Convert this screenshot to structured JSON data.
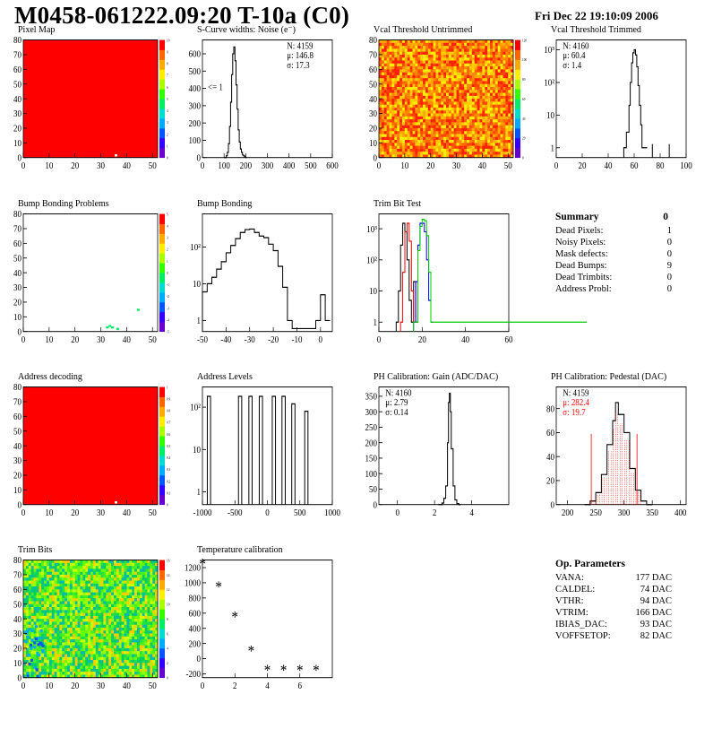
{
  "header": {
    "title": "M0458-061222.09:20 T-10a (C0)",
    "date": "Fri Dec 22 19:10:09 2006"
  },
  "colors": {
    "red_fill": "#ff0000",
    "green_line": "#00cc00",
    "blue_line": "#0000ff",
    "red_line": "#ff0000",
    "hist_line": "#000000"
  },
  "palette": [
    "#6600cc",
    "#3300ff",
    "#0055ff",
    "#00aaff",
    "#00ddcc",
    "#00ee66",
    "#33ff00",
    "#aaff00",
    "#ffee00",
    "#ffaa00",
    "#ff6600",
    "#ff0000"
  ],
  "panels": [
    {
      "id": "pixel-map",
      "title": "Pixel Map",
      "kind": "map2d",
      "fill": "solid_red",
      "x_ticks": [
        "0",
        "10",
        "20",
        "30",
        "40",
        "50"
      ],
      "y_ticks": [
        "0",
        "10",
        "20",
        "30",
        "40",
        "50",
        "60",
        "70",
        "80"
      ],
      "z_ticks": [
        "0",
        "1",
        "2",
        "3",
        "4",
        "5",
        "6",
        "7",
        "8",
        "9",
        "10"
      ],
      "xlim": [
        0,
        52
      ],
      "ylim": [
        0,
        80
      ]
    },
    {
      "id": "scurve",
      "title": "S-Curve widths: Noise (e⁻)",
      "kind": "hist",
      "stats": [
        "N: 4159",
        "μ: 146.8",
        "σ: 17.3"
      ],
      "annotation": "<= 1",
      "x_ticks": [
        "0",
        "100",
        "200",
        "300",
        "400",
        "500",
        "600"
      ],
      "xlim": [
        0,
        600
      ],
      "y_ticks": [
        "0",
        "100",
        "200",
        "300",
        "400",
        "500",
        "600"
      ],
      "ylim": [
        0,
        680
      ],
      "series": [
        {
          "color": "#000000",
          "x": [
            100,
            110,
            115,
            120,
            125,
            130,
            135,
            140,
            145,
            150,
            155,
            160,
            165,
            170,
            175,
            180,
            185,
            190,
            195,
            200
          ],
          "y": [
            0,
            10,
            30,
            80,
            180,
            320,
            480,
            600,
            640,
            560,
            420,
            280,
            160,
            90,
            50,
            30,
            15,
            10,
            5,
            0
          ]
        }
      ]
    },
    {
      "id": "vcal-untrimmed",
      "title": "Vcal Threshold Untrimmed",
      "kind": "map2d",
      "fill": "noise_hot",
      "x_ticks": [
        "0",
        "10",
        "20",
        "30",
        "40",
        "50"
      ],
      "y_ticks": [
        "0",
        "10",
        "20",
        "30",
        "40",
        "50",
        "60",
        "70",
        "80"
      ],
      "z_ticks": [
        "0",
        "20",
        "40",
        "60",
        "80",
        "100",
        "120"
      ],
      "xlim": [
        0,
        52
      ],
      "ylim": [
        0,
        80
      ]
    },
    {
      "id": "vcal-trimmed",
      "title": "Vcal Threshold Trimmed",
      "kind": "hist",
      "log": true,
      "stats": [
        "N: 4160",
        "μ: 60.4",
        "σ: 1.4"
      ],
      "x_ticks": [
        "0",
        "20",
        "40",
        "60",
        "80",
        "100"
      ],
      "xlim": [
        0,
        100
      ],
      "y_ticks": [
        "1",
        "10",
        "10²",
        "10³"
      ],
      "ylim": [
        0.5,
        2000
      ],
      "series": [
        {
          "color": "#000000",
          "x": [
            52,
            54,
            56,
            57,
            58,
            59,
            60,
            61,
            62,
            63,
            64,
            65,
            66,
            68
          ],
          "y": [
            1,
            3,
            20,
            100,
            400,
            800,
            1000,
            700,
            300,
            80,
            20,
            5,
            1,
            1
          ]
        }
      ],
      "spikes": [
        [
          74,
          1
        ],
        [
          87,
          1
        ]
      ]
    },
    {
      "id": "bump-problems",
      "title": "Bump Bonding Problems",
      "kind": "map2d",
      "fill": "sparse",
      "x_ticks": [
        "0",
        "10",
        "20",
        "30",
        "40",
        "50"
      ],
      "y_ticks": [
        "0",
        "10",
        "20",
        "30",
        "40",
        "50",
        "60",
        "70",
        "80"
      ],
      "z_ticks": [
        "-5",
        "-4",
        "-3",
        "-2",
        "-1",
        "0",
        "1",
        "2",
        "3",
        "4",
        "5"
      ],
      "xlim": [
        0,
        52
      ],
      "ylim": [
        0,
        80
      ]
    },
    {
      "id": "bump-bonding",
      "title": "Bump Bonding",
      "kind": "hist",
      "log": true,
      "x_ticks": [
        "-50",
        "-40",
        "-30",
        "-20",
        "-10",
        "0"
      ],
      "xlim": [
        -50,
        5
      ],
      "y_ticks": [
        "1",
        "10",
        "10²"
      ],
      "ylim": [
        0.5,
        800
      ],
      "series": [
        {
          "color": "#000000",
          "x": [
            -50,
            -48,
            -46,
            -44,
            -42,
            -40,
            -38,
            -36,
            -34,
            -32,
            -30,
            -28,
            -26,
            -24,
            -22,
            -20,
            -18,
            -16,
            -14,
            -12,
            -10,
            -8,
            -6,
            -4,
            -2,
            0,
            2
          ],
          "y": [
            6,
            10,
            15,
            25,
            40,
            70,
            110,
            170,
            250,
            300,
            310,
            250,
            200,
            180,
            120,
            80,
            30,
            8,
            1,
            0.6,
            0.6,
            0.6,
            0.6,
            0.6,
            1,
            5,
            1
          ]
        }
      ]
    },
    {
      "id": "trim-bit-test",
      "title": "Trim Bit Test",
      "kind": "hist",
      "log": true,
      "x_ticks": [
        "0",
        "20",
        "40",
        "60"
      ],
      "xlim": [
        0,
        60
      ],
      "y_ticks": [
        "1",
        "10",
        "10²",
        "10³"
      ],
      "ylim": [
        0.5,
        3000
      ],
      "series": [
        {
          "color": "#000000",
          "x": [
            8,
            9,
            10,
            11,
            12,
            13,
            14,
            15,
            16,
            17
          ],
          "y": [
            1,
            10,
            300,
            1500,
            800,
            100,
            5,
            1,
            20,
            1
          ]
        },
        {
          "color": "#ff0000",
          "x": [
            10,
            11,
            12,
            13,
            14,
            15,
            16
          ],
          "y": [
            1,
            40,
            800,
            1500,
            400,
            10,
            1
          ]
        },
        {
          "color": "#0000ff",
          "x": [
            16,
            17,
            18,
            19,
            20,
            21,
            22,
            23,
            24
          ],
          "y": [
            1,
            20,
            300,
            1500,
            1500,
            800,
            100,
            5,
            1
          ]
        },
        {
          "color": "#00cc00",
          "x": [
            16,
            18,
            19,
            20,
            21,
            22,
            23,
            24,
            60
          ],
          "y": [
            1,
            200,
            1200,
            2000,
            1800,
            600,
            40,
            1,
            1
          ]
        }
      ]
    },
    {
      "id": "summary",
      "kind": "summary",
      "title": "Summary",
      "total": "0",
      "rows": [
        {
          "label": "Dead Pixels:",
          "value": "1"
        },
        {
          "label": "Noisy Pixels:",
          "value": "0"
        },
        {
          "label": "Mask defects:",
          "value": "0"
        },
        {
          "label": "Dead Bumps:",
          "value": "9"
        },
        {
          "label": "Dead Trimbits:",
          "value": "0"
        },
        {
          "label": "Address Probl:",
          "value": "0"
        }
      ]
    },
    {
      "id": "address-decoding",
      "title": "Address decoding",
      "kind": "map2d",
      "fill": "solid_red",
      "x_ticks": [
        "0",
        "10",
        "20",
        "30",
        "40",
        "50"
      ],
      "y_ticks": [
        "0",
        "10",
        "20",
        "30",
        "40",
        "50",
        "60",
        "70",
        "80"
      ],
      "z_ticks": [
        "0",
        "0.1",
        "0.2",
        "0.3",
        "0.4",
        "0.5",
        "0.6",
        "0.7",
        "0.8",
        "0.9",
        "1"
      ],
      "xlim": [
        0,
        52
      ],
      "ylim": [
        0,
        80
      ]
    },
    {
      "id": "address-levels",
      "title": "Address Levels",
      "kind": "hist",
      "log": true,
      "x_ticks": [
        "-1000",
        "-500",
        "0",
        "500",
        "1000"
      ],
      "xlim": [
        -1000,
        1000
      ],
      "y_ticks": [
        "1",
        "10",
        "10²"
      ],
      "ylim": [
        0.5,
        300
      ],
      "peaks": [
        -900,
        -420,
        -260,
        -100,
        100,
        250,
        400,
        600
      ],
      "peak_heights": [
        180,
        180,
        180,
        180,
        180,
        180,
        120,
        80
      ],
      "series": []
    },
    {
      "id": "ph-gain",
      "title": "PH Calibration: Gain (ADC/DAC)",
      "kind": "hist",
      "stats": [
        "N: 4160",
        "μ: 2.79",
        "σ: 0.14"
      ],
      "x_ticks": [
        "0",
        "2",
        "4"
      ],
      "xlim": [
        -1,
        6
      ],
      "y_ticks": [
        "0",
        "50",
        "100",
        "150",
        "200",
        "250",
        "300",
        "350"
      ],
      "ylim": [
        0,
        380
      ],
      "series": [
        {
          "color": "#000000",
          "x": [
            2.2,
            2.4,
            2.5,
            2.6,
            2.7,
            2.75,
            2.8,
            2.85,
            2.9,
            3.0,
            3.1,
            3.2,
            3.3
          ],
          "y": [
            0,
            5,
            20,
            60,
            200,
            330,
            360,
            300,
            180,
            60,
            15,
            3,
            0
          ]
        }
      ]
    },
    {
      "id": "ph-pedestal",
      "title": "PH Calibration: Pedestal (DAC)",
      "kind": "hist",
      "stats": [
        "N: 4159",
        "μ: 282.4",
        "σ: 19.7"
      ],
      "x_ticks": [
        "200",
        "250",
        "300",
        "350",
        "400"
      ],
      "xlim": [
        180,
        410
      ],
      "y_ticks": [
        "0",
        "20",
        "40",
        "60",
        "80"
      ],
      "ylim": [
        0,
        98
      ],
      "series": [
        {
          "color": "#000000",
          "x": [
            230,
            240,
            250,
            260,
            270,
            280,
            285,
            290,
            300,
            310,
            320,
            330,
            340
          ],
          "y": [
            0,
            3,
            10,
            25,
            50,
            70,
            85,
            75,
            60,
            30,
            12,
            3,
            0
          ]
        }
      ],
      "red_lines": [
        242,
        323
      ]
    },
    {
      "id": "trim-bits",
      "title": "Trim Bits",
      "kind": "map2d",
      "fill": "noise_green",
      "x_ticks": [
        "0",
        "10",
        "20",
        "30",
        "40",
        "50"
      ],
      "y_ticks": [
        "0",
        "10",
        "20",
        "30",
        "40",
        "50",
        "60",
        "70",
        "80"
      ],
      "z_ticks": [
        "0",
        "2",
        "4",
        "6",
        "8",
        "10",
        "12",
        "14",
        "16"
      ],
      "xlim": [
        0,
        52
      ],
      "ylim": [
        0,
        80
      ]
    },
    {
      "id": "temperature",
      "title": "Temperature calibration",
      "kind": "scatter",
      "x_ticks": [
        "0",
        "2",
        "4",
        "6"
      ],
      "xlim": [
        0,
        8
      ],
      "y_ticks": [
        "-200",
        "0",
        "200",
        "400",
        "600",
        "800",
        "1000",
        "1200"
      ],
      "ylim": [
        -250,
        1300
      ],
      "points": {
        "x": [
          0,
          1,
          2,
          3,
          4,
          5,
          6,
          7
        ],
        "y": [
          1250,
          950,
          550,
          100,
          -150,
          -150,
          -150,
          -150
        ]
      }
    },
    {
      "id": "op-params",
      "kind": "summary",
      "title": "Op. Parameters",
      "total": "",
      "rows": [
        {
          "label": "VANA:",
          "value": "177 DAC"
        },
        {
          "label": "CALDEL:",
          "value": "74 DAC"
        },
        {
          "label": "VTHR:",
          "value": "94 DAC"
        },
        {
          "label": "VTRIM:",
          "value": "166 DAC"
        },
        {
          "label": "IBIAS_DAC:",
          "value": "93 DAC"
        },
        {
          "label": "VOFFSETOP:",
          "value": "82 DAC"
        }
      ]
    }
  ],
  "chart_data": [
    {
      "type": "heatmap",
      "title": "Pixel Map",
      "xlim": [
        0,
        52
      ],
      "ylim": [
        0,
        80
      ]
    },
    {
      "type": "line",
      "title": "S-Curve widths: Noise (e⁻)",
      "stats": {
        "N": 4159,
        "mean": 146.8,
        "sigma": 17.3
      },
      "xlim": [
        0,
        600
      ]
    },
    {
      "type": "heatmap",
      "title": "Vcal Threshold Untrimmed",
      "xlim": [
        0,
        52
      ],
      "ylim": [
        0,
        80
      ]
    },
    {
      "type": "line",
      "title": "Vcal Threshold Trimmed",
      "stats": {
        "N": 4160,
        "mean": 60.4,
        "sigma": 1.4
      },
      "xlim": [
        0,
        100
      ]
    },
    {
      "type": "heatmap",
      "title": "Bump Bonding Problems"
    },
    {
      "type": "line",
      "title": "Bump Bonding",
      "xlim": [
        -50,
        5
      ]
    },
    {
      "type": "line",
      "title": "Trim Bit Test",
      "xlim": [
        0,
        60
      ]
    },
    {
      "type": "heatmap",
      "title": "Address decoding"
    },
    {
      "type": "line",
      "title": "Address Levels",
      "xlim": [
        -1000,
        1000
      ]
    },
    {
      "type": "line",
      "title": "PH Calibration: Gain (ADC/DAC)",
      "stats": {
        "N": 4160,
        "mean": 2.79,
        "sigma": 0.14
      }
    },
    {
      "type": "line",
      "title": "PH Calibration: Pedestal (DAC)",
      "stats": {
        "N": 4159,
        "mean": 282.4,
        "sigma": 19.7
      }
    },
    {
      "type": "heatmap",
      "title": "Trim Bits"
    },
    {
      "type": "scatter",
      "title": "Temperature calibration",
      "x": [
        0,
        1,
        2,
        3,
        4,
        5,
        6,
        7
      ],
      "y": [
        1250,
        950,
        550,
        100,
        -150,
        -150,
        -150,
        -150
      ]
    }
  ]
}
